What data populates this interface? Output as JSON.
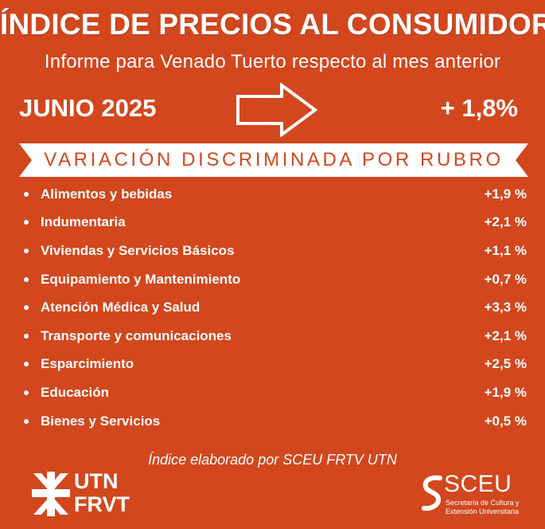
{
  "header": {
    "title": "ÍNDICE DE PRECIOS AL CONSUMIDOR",
    "subtitle": "Informe para Venado Tuerto respecto al mes anterior"
  },
  "summary": {
    "month": "JUNIO 2025",
    "total": "+ 1,8%",
    "arrow_icon": "right-arrow-icon"
  },
  "banner": {
    "text": "VARIACIÓN DISCRIMINADA POR RUBRO"
  },
  "items": [
    {
      "label": "Alimentos y bebidas",
      "value": "+1,9 %"
    },
    {
      "label": "Indumentaria",
      "value": "+2,1 %"
    },
    {
      "label": "Viviendas y Servicios Básicos",
      "value": "+1,1 %"
    },
    {
      "label": "Equipamiento y Mantenimiento",
      "value": "+0,7 %"
    },
    {
      "label": "Atención Médica y Salud",
      "value": "+3,3 %"
    },
    {
      "label": "Transporte y comunicaciones",
      "value": "+2,1 %"
    },
    {
      "label": "Esparcimiento",
      "value": "+2,5 %"
    },
    {
      "label": "Educación",
      "value": "+1,9 %"
    },
    {
      "label": "Bienes y Servicios",
      "value": "+0,5 %"
    }
  ],
  "footer": {
    "text": "Índice elaborado por SCEU FRTV UTN"
  },
  "logos": {
    "utn_line1": "UTN",
    "utn_line2": "FRVT",
    "sceu_name": "SCEU",
    "sceu_sub": "Secretaría de Cultura y Extensión Universitaria"
  },
  "colors": {
    "background": "#d2471d",
    "text": "#ffffff",
    "banner_fill": "#ffffff",
    "banner_text": "#d2471d"
  }
}
